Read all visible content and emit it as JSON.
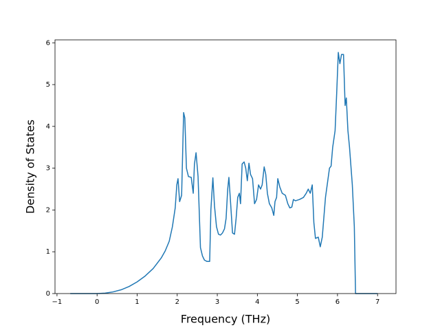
{
  "chart_data": {
    "type": "line",
    "xlabel": "Frequency (THz)",
    "ylabel": "Density of States",
    "xlim": [
      -1.05,
      7.46
    ],
    "ylim": [
      0,
      6.07
    ],
    "xticks": [
      {
        "value": -1,
        "label": "−1"
      },
      0,
      1,
      2,
      3,
      4,
      5,
      6,
      7
    ],
    "yticks": [
      0,
      1,
      2,
      3,
      4,
      5,
      6
    ],
    "series": [
      {
        "color": "#1f77b4",
        "x": [
          -0.67,
          0,
          0.2,
          0.4,
          0.6,
          0.8,
          1.0,
          1.2,
          1.4,
          1.6,
          1.7,
          1.8,
          1.88,
          1.95,
          1.99,
          2.02,
          2.06,
          2.11,
          2.16,
          2.19,
          2.23,
          2.28,
          2.35,
          2.4,
          2.43,
          2.47,
          2.52,
          2.58,
          2.63,
          2.68,
          2.74,
          2.81,
          2.84,
          2.89,
          2.93,
          2.98,
          3.03,
          3.08,
          3.13,
          3.18,
          3.22,
          3.26,
          3.29,
          3.33,
          3.38,
          3.43,
          3.47,
          3.51,
          3.55,
          3.58,
          3.62,
          3.67,
          3.71,
          3.75,
          3.79,
          3.83,
          3.88,
          3.93,
          3.98,
          4.03,
          4.08,
          4.12,
          4.17,
          4.21,
          4.25,
          4.3,
          4.36,
          4.41,
          4.44,
          4.48,
          4.51,
          4.56,
          4.62,
          4.7,
          4.76,
          4.81,
          4.86,
          4.9,
          4.95,
          5.05,
          5.15,
          5.22,
          5.27,
          5.32,
          5.37,
          5.41,
          5.45,
          5.52,
          5.57,
          5.62,
          5.7,
          5.8,
          5.84,
          5.88,
          5.94,
          5.98,
          6.02,
          6.06,
          6.1,
          6.15,
          6.19,
          6.22,
          6.26,
          6.3,
          6.37,
          6.42,
          6.45,
          7.0
        ],
        "values": [
          0,
          0,
          0.01,
          0.04,
          0.09,
          0.17,
          0.28,
          0.42,
          0.6,
          0.85,
          1.02,
          1.25,
          1.6,
          2.05,
          2.6,
          2.75,
          2.2,
          2.35,
          4.33,
          4.2,
          3.0,
          2.8,
          2.78,
          2.4,
          3.1,
          3.37,
          2.8,
          1.1,
          0.9,
          0.8,
          0.77,
          0.77,
          2.0,
          2.77,
          2.1,
          1.6,
          1.42,
          1.4,
          1.45,
          1.55,
          1.8,
          2.5,
          2.78,
          2.2,
          1.45,
          1.42,
          1.8,
          2.3,
          2.4,
          2.15,
          3.1,
          3.15,
          3.0,
          2.7,
          3.12,
          2.85,
          2.75,
          2.15,
          2.25,
          2.6,
          2.5,
          2.6,
          3.03,
          2.85,
          2.4,
          2.15,
          2.05,
          1.87,
          2.2,
          2.3,
          2.75,
          2.55,
          2.4,
          2.35,
          2.15,
          2.05,
          2.07,
          2.25,
          2.22,
          2.25,
          2.3,
          2.4,
          2.5,
          2.4,
          2.6,
          1.7,
          1.32,
          1.35,
          1.12,
          1.35,
          2.3,
          3.0,
          3.05,
          3.5,
          3.9,
          4.8,
          5.77,
          5.5,
          5.72,
          5.72,
          4.5,
          4.68,
          3.9,
          3.5,
          2.6,
          1.6,
          0,
          0
        ]
      }
    ]
  }
}
